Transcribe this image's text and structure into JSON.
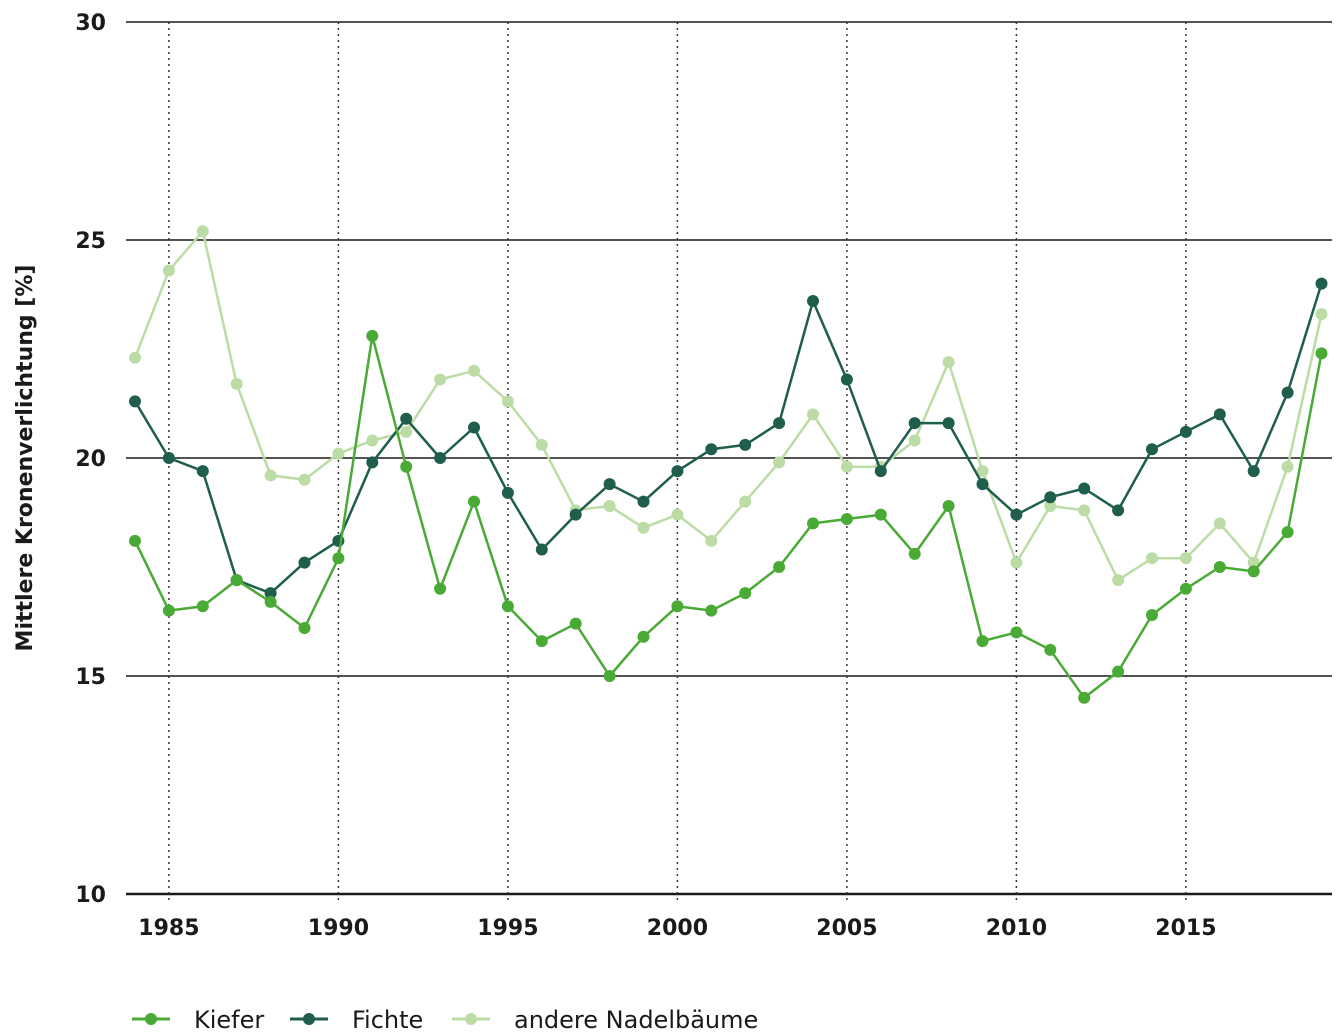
{
  "chart_data": {
    "type": "line",
    "title": "",
    "xlabel": "",
    "ylabel": "Mittlere Kronenverlichtung [%]",
    "xlim": [
      1984,
      2019
    ],
    "ylim": [
      10,
      30
    ],
    "x_ticks": [
      1985,
      1990,
      1995,
      2000,
      2005,
      2010,
      2015
    ],
    "y_ticks": [
      10,
      15,
      20,
      25,
      30
    ],
    "grid": "horizontal solid at y ticks, vertical dotted at x ticks",
    "legend_position": "bottom-left",
    "x": [
      1984,
      1985,
      1986,
      1987,
      1988,
      1989,
      1990,
      1991,
      1992,
      1993,
      1994,
      1995,
      1996,
      1997,
      1998,
      1999,
      2000,
      2001,
      2002,
      2003,
      2004,
      2005,
      2006,
      2007,
      2008,
      2009,
      2010,
      2011,
      2012,
      2013,
      2014,
      2015,
      2016,
      2017,
      2018,
      2019
    ],
    "series": [
      {
        "name": "Kiefer",
        "color": "#4aaa36",
        "values": [
          18.1,
          16.5,
          16.6,
          17.2,
          16.7,
          16.1,
          17.7,
          22.8,
          19.8,
          17.0,
          19.0,
          16.6,
          15.8,
          16.2,
          15.0,
          15.9,
          16.6,
          16.5,
          16.9,
          17.5,
          18.5,
          18.6,
          18.7,
          17.8,
          18.9,
          15.8,
          16.0,
          15.6,
          14.5,
          15.1,
          16.4,
          17.0,
          17.5,
          17.4,
          18.3,
          22.4
        ]
      },
      {
        "name": "Fichte",
        "color": "#1f5e4c",
        "values": [
          21.3,
          20.0,
          19.7,
          17.2,
          16.9,
          17.6,
          18.1,
          19.9,
          20.9,
          20.0,
          20.7,
          19.2,
          17.9,
          18.7,
          19.4,
          19.0,
          19.7,
          20.2,
          20.3,
          20.8,
          23.6,
          21.8,
          19.7,
          20.8,
          20.8,
          19.4,
          18.7,
          19.1,
          19.3,
          18.8,
          20.2,
          20.6,
          21.0,
          19.7,
          21.5,
          24.0
        ]
      },
      {
        "name": "andere Nadelbäume",
        "color": "#bcdca6",
        "values": [
          22.3,
          24.3,
          25.2,
          21.7,
          19.6,
          19.5,
          20.1,
          20.4,
          20.6,
          21.8,
          22.0,
          21.3,
          20.3,
          18.8,
          18.9,
          18.4,
          18.7,
          18.1,
          19.0,
          19.9,
          21.0,
          19.8,
          19.8,
          20.4,
          22.2,
          19.7,
          17.6,
          18.9,
          18.8,
          17.2,
          17.7,
          17.7,
          18.5,
          17.6,
          19.8,
          23.3
        ]
      }
    ]
  }
}
